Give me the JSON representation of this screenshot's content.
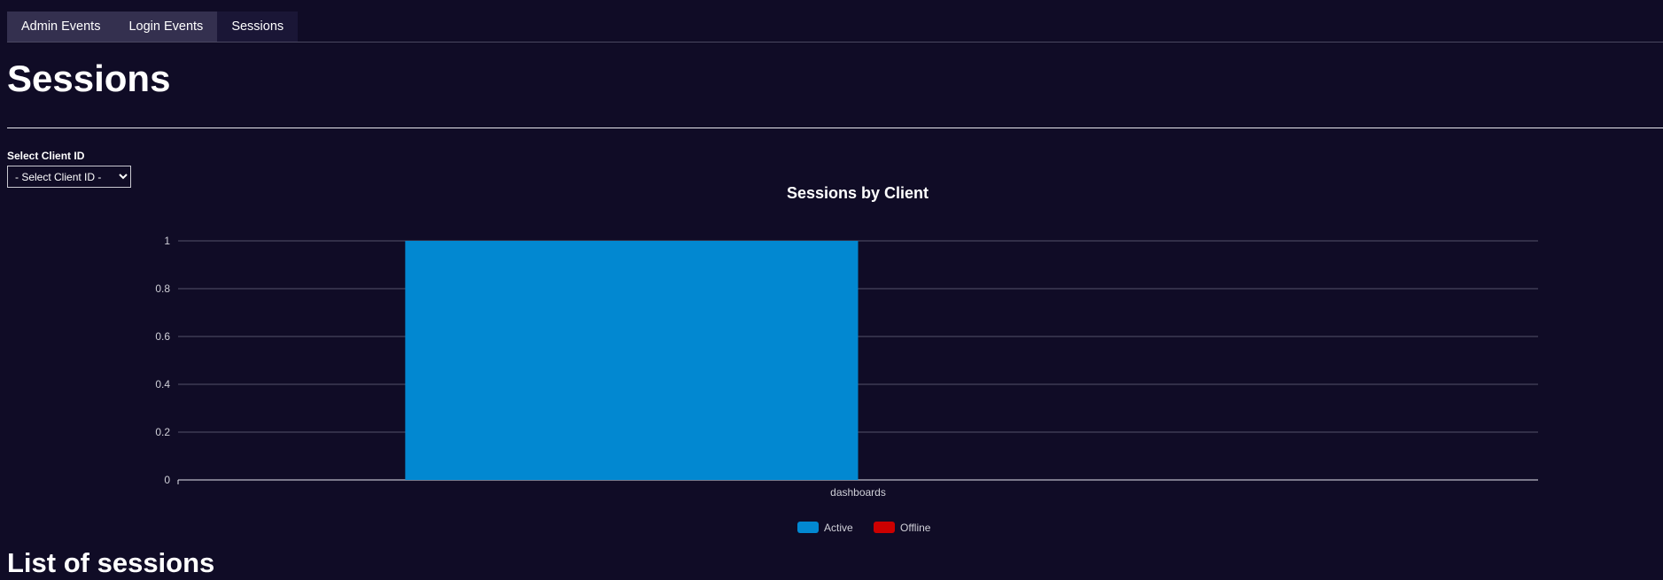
{
  "tabs": [
    {
      "label": "Admin Events",
      "active": false
    },
    {
      "label": "Login Events",
      "active": false
    },
    {
      "label": "Sessions",
      "active": true
    }
  ],
  "page_title": "Sessions",
  "client_select": {
    "label": "Select Client ID",
    "selected": "- Select Client ID -"
  },
  "list_title": "List of sessions",
  "colors": {
    "background": "#100c26",
    "active_series": "#0288d1",
    "offline_series": "#cc0000"
  },
  "chart_data": {
    "type": "bar",
    "title": "Sessions by Client",
    "categories": [
      "dashboards"
    ],
    "series": [
      {
        "name": "Active",
        "values": [
          1
        ],
        "color": "#0288d1"
      },
      {
        "name": "Offline",
        "values": [
          0
        ],
        "color": "#cc0000"
      }
    ],
    "yticks": [
      "0",
      "0.2",
      "0.4",
      "0.6",
      "0.8",
      "1"
    ],
    "ylim": [
      0,
      1
    ],
    "grid": true,
    "legend": "bottom"
  }
}
